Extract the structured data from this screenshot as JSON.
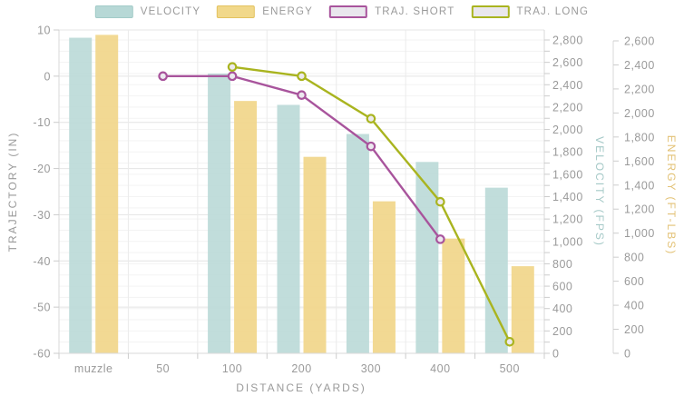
{
  "legend": [
    {
      "label": "VELOCITY",
      "type": "bar",
      "color": "#b7d8d6",
      "border": "#a3cbc8"
    },
    {
      "label": "ENERGY",
      "type": "bar",
      "color": "#f1d88a",
      "border": "#e3c25f"
    },
    {
      "label": "TRAJ. SHORT",
      "type": "line",
      "color": "#a8549c",
      "fill": "#e9e7ed"
    },
    {
      "label": "TRAJ. LONG",
      "type": "line",
      "color": "#a9b41f",
      "fill": "#e9e7ed"
    }
  ],
  "chart_data": {
    "type": "combo-bar-line",
    "categories": [
      "muzzle",
      "50",
      "100",
      "200",
      "300",
      "400",
      "500"
    ],
    "xlabel": "DISTANCE (YARDS)",
    "grid": "on",
    "legend_position": "top",
    "axes": {
      "trajectory": {
        "title": "TRAJECTORY (IN)",
        "min": -60,
        "max": 10,
        "step": 10,
        "side": "left",
        "color": "#9a9a9a"
      },
      "velocity": {
        "title": "VELOCITY (FPS)",
        "min": 0,
        "max": 2800,
        "step": 200,
        "minor_step": 100,
        "side": "right",
        "color": "#a5c9c7"
      },
      "energy": {
        "title": "ENERGY (FT-LBS)",
        "min": 0,
        "max": 2600,
        "step": 200,
        "side": "right-outer",
        "color": "#e3c276"
      }
    },
    "series": [
      {
        "name": "VELOCITY",
        "type": "bar",
        "axis": "velocity",
        "color": "#bcdad8",
        "values": [
          2820,
          null,
          2500,
          2220,
          1960,
          1710,
          1480
        ]
      },
      {
        "name": "ENERGY",
        "type": "bar",
        "axis": "energy",
        "color": "#f1d68a",
        "values": [
          2650,
          null,
          2100,
          1635,
          1265,
          955,
          725
        ]
      },
      {
        "name": "TRAJ. SHORT",
        "type": "line",
        "axis": "trajectory",
        "color": "#a8549c",
        "values": [
          null,
          0,
          0,
          -4.1,
          -15.2,
          -35.3,
          null
        ]
      },
      {
        "name": "TRAJ. LONG",
        "type": "line",
        "axis": "trajectory",
        "color": "#a9b41f",
        "values": [
          null,
          null,
          2,
          0,
          -9.2,
          -27.2,
          -57.5
        ]
      }
    ]
  }
}
